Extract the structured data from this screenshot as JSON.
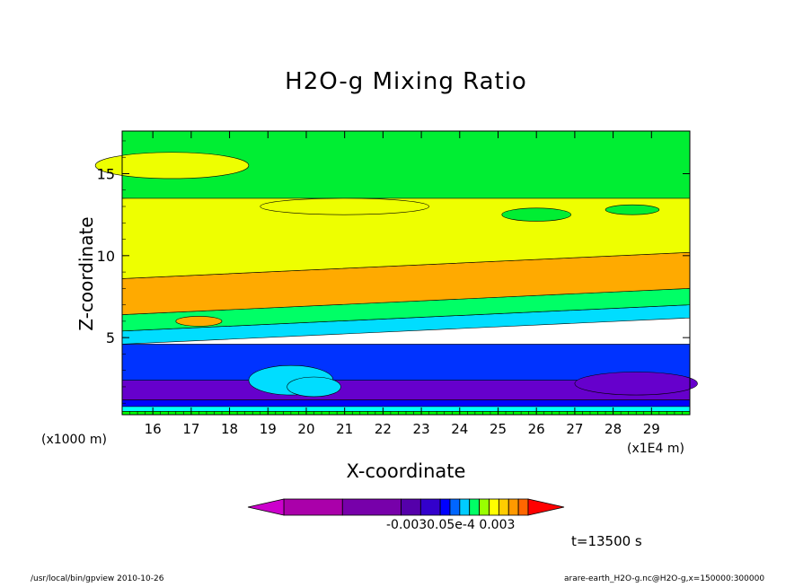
{
  "chart_data": {
    "type": "heatmap",
    "title": "H2O-g Mixing Ratio",
    "xlabel": "X-coordinate",
    "ylabel": "Z-coordinate",
    "x_unit_label": "(x1000 m)",
    "x_scale_label": "(x1E4 m)",
    "x_ticks": [
      16,
      17,
      18,
      19,
      20,
      21,
      22,
      23,
      24,
      25,
      26,
      27,
      28,
      29
    ],
    "y_ticks": [
      5,
      10,
      15
    ],
    "xlim": [
      15.2,
      30.0
    ],
    "ylim": [
      0.3,
      17.6
    ],
    "grid": false,
    "bands": [
      {
        "z0": 0.3,
        "z1": 0.5,
        "color": "#00ff00"
      },
      {
        "z0": 0.5,
        "z1": 0.8,
        "color": "#00ffff"
      },
      {
        "z0": 0.8,
        "z1": 1.2,
        "color": "#0000ff"
      },
      {
        "z0": 1.2,
        "z1": 2.4,
        "color": "#6600cc"
      },
      {
        "z0": 2.4,
        "z1": 4.6,
        "color": "#0033ff"
      },
      {
        "z0": 4.6,
        "z1": 5.4,
        "color": "#00ddff"
      },
      {
        "z0": 5.4,
        "z1": 6.4,
        "color": "#00ff66"
      },
      {
        "z0": 6.4,
        "z1": 8.6,
        "color": "#ffaa00"
      },
      {
        "z0": 8.6,
        "z1": 13.5,
        "color": "#eeff00"
      },
      {
        "z0": 13.5,
        "z1": 17.6,
        "color": "#00ee33"
      }
    ],
    "colorbar": {
      "colors": [
        "#cc00cc",
        "#aa00aa",
        "#7700aa",
        "#5500aa",
        "#3300cc",
        "#0000ff",
        "#0066ff",
        "#00ccff",
        "#00ff66",
        "#99ff00",
        "#ffff00",
        "#ffcc00",
        "#ff9900",
        "#ff6600",
        "#ff0000"
      ],
      "tick_text": "-0.0030.05e-4  0.003"
    },
    "time_label": "t=13500 s"
  },
  "footer": {
    "left": "/usr/local/bin/gpview   2010-10-26",
    "right": "arare-earth_H2O-g.nc@H2O-g,x=150000:300000"
  }
}
